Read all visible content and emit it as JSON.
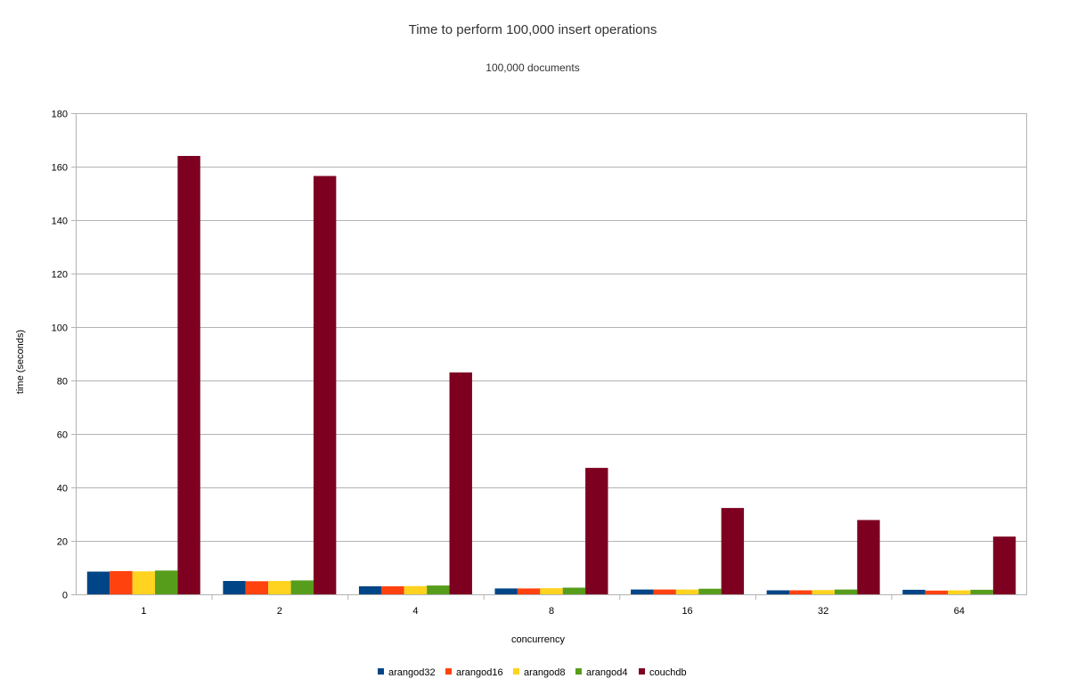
{
  "chart_data": {
    "type": "bar",
    "title": "Time to perform 100,000 insert operations",
    "subtitle": "100,000 documents",
    "xlabel": "concurrency",
    "ylabel": "time (seconds)",
    "ylim": [
      0,
      180
    ],
    "yticks": [
      0,
      20,
      40,
      60,
      80,
      100,
      120,
      140,
      160,
      180
    ],
    "grid": true,
    "legend_position": "bottom",
    "categories": [
      "1",
      "2",
      "4",
      "8",
      "16",
      "32",
      "64"
    ],
    "series": [
      {
        "name": "arangod32",
        "color": "#004586",
        "values": [
          8.5,
          5.0,
          3.0,
          2.2,
          1.8,
          1.5,
          1.7
        ]
      },
      {
        "name": "arangod16",
        "color": "#ff420e",
        "values": [
          8.7,
          4.9,
          3.0,
          2.2,
          1.8,
          1.5,
          1.4
        ]
      },
      {
        "name": "arangod8",
        "color": "#ffd320",
        "values": [
          8.6,
          5.0,
          3.1,
          2.3,
          1.8,
          1.6,
          1.5
        ]
      },
      {
        "name": "arangod4",
        "color": "#579d1c",
        "values": [
          8.9,
          5.2,
          3.3,
          2.5,
          2.1,
          1.8,
          1.7
        ]
      },
      {
        "name": "couchdb",
        "color": "#7e0021",
        "values": [
          164,
          156.5,
          83,
          47.3,
          32.3,
          27.8,
          21.6
        ]
      }
    ]
  }
}
